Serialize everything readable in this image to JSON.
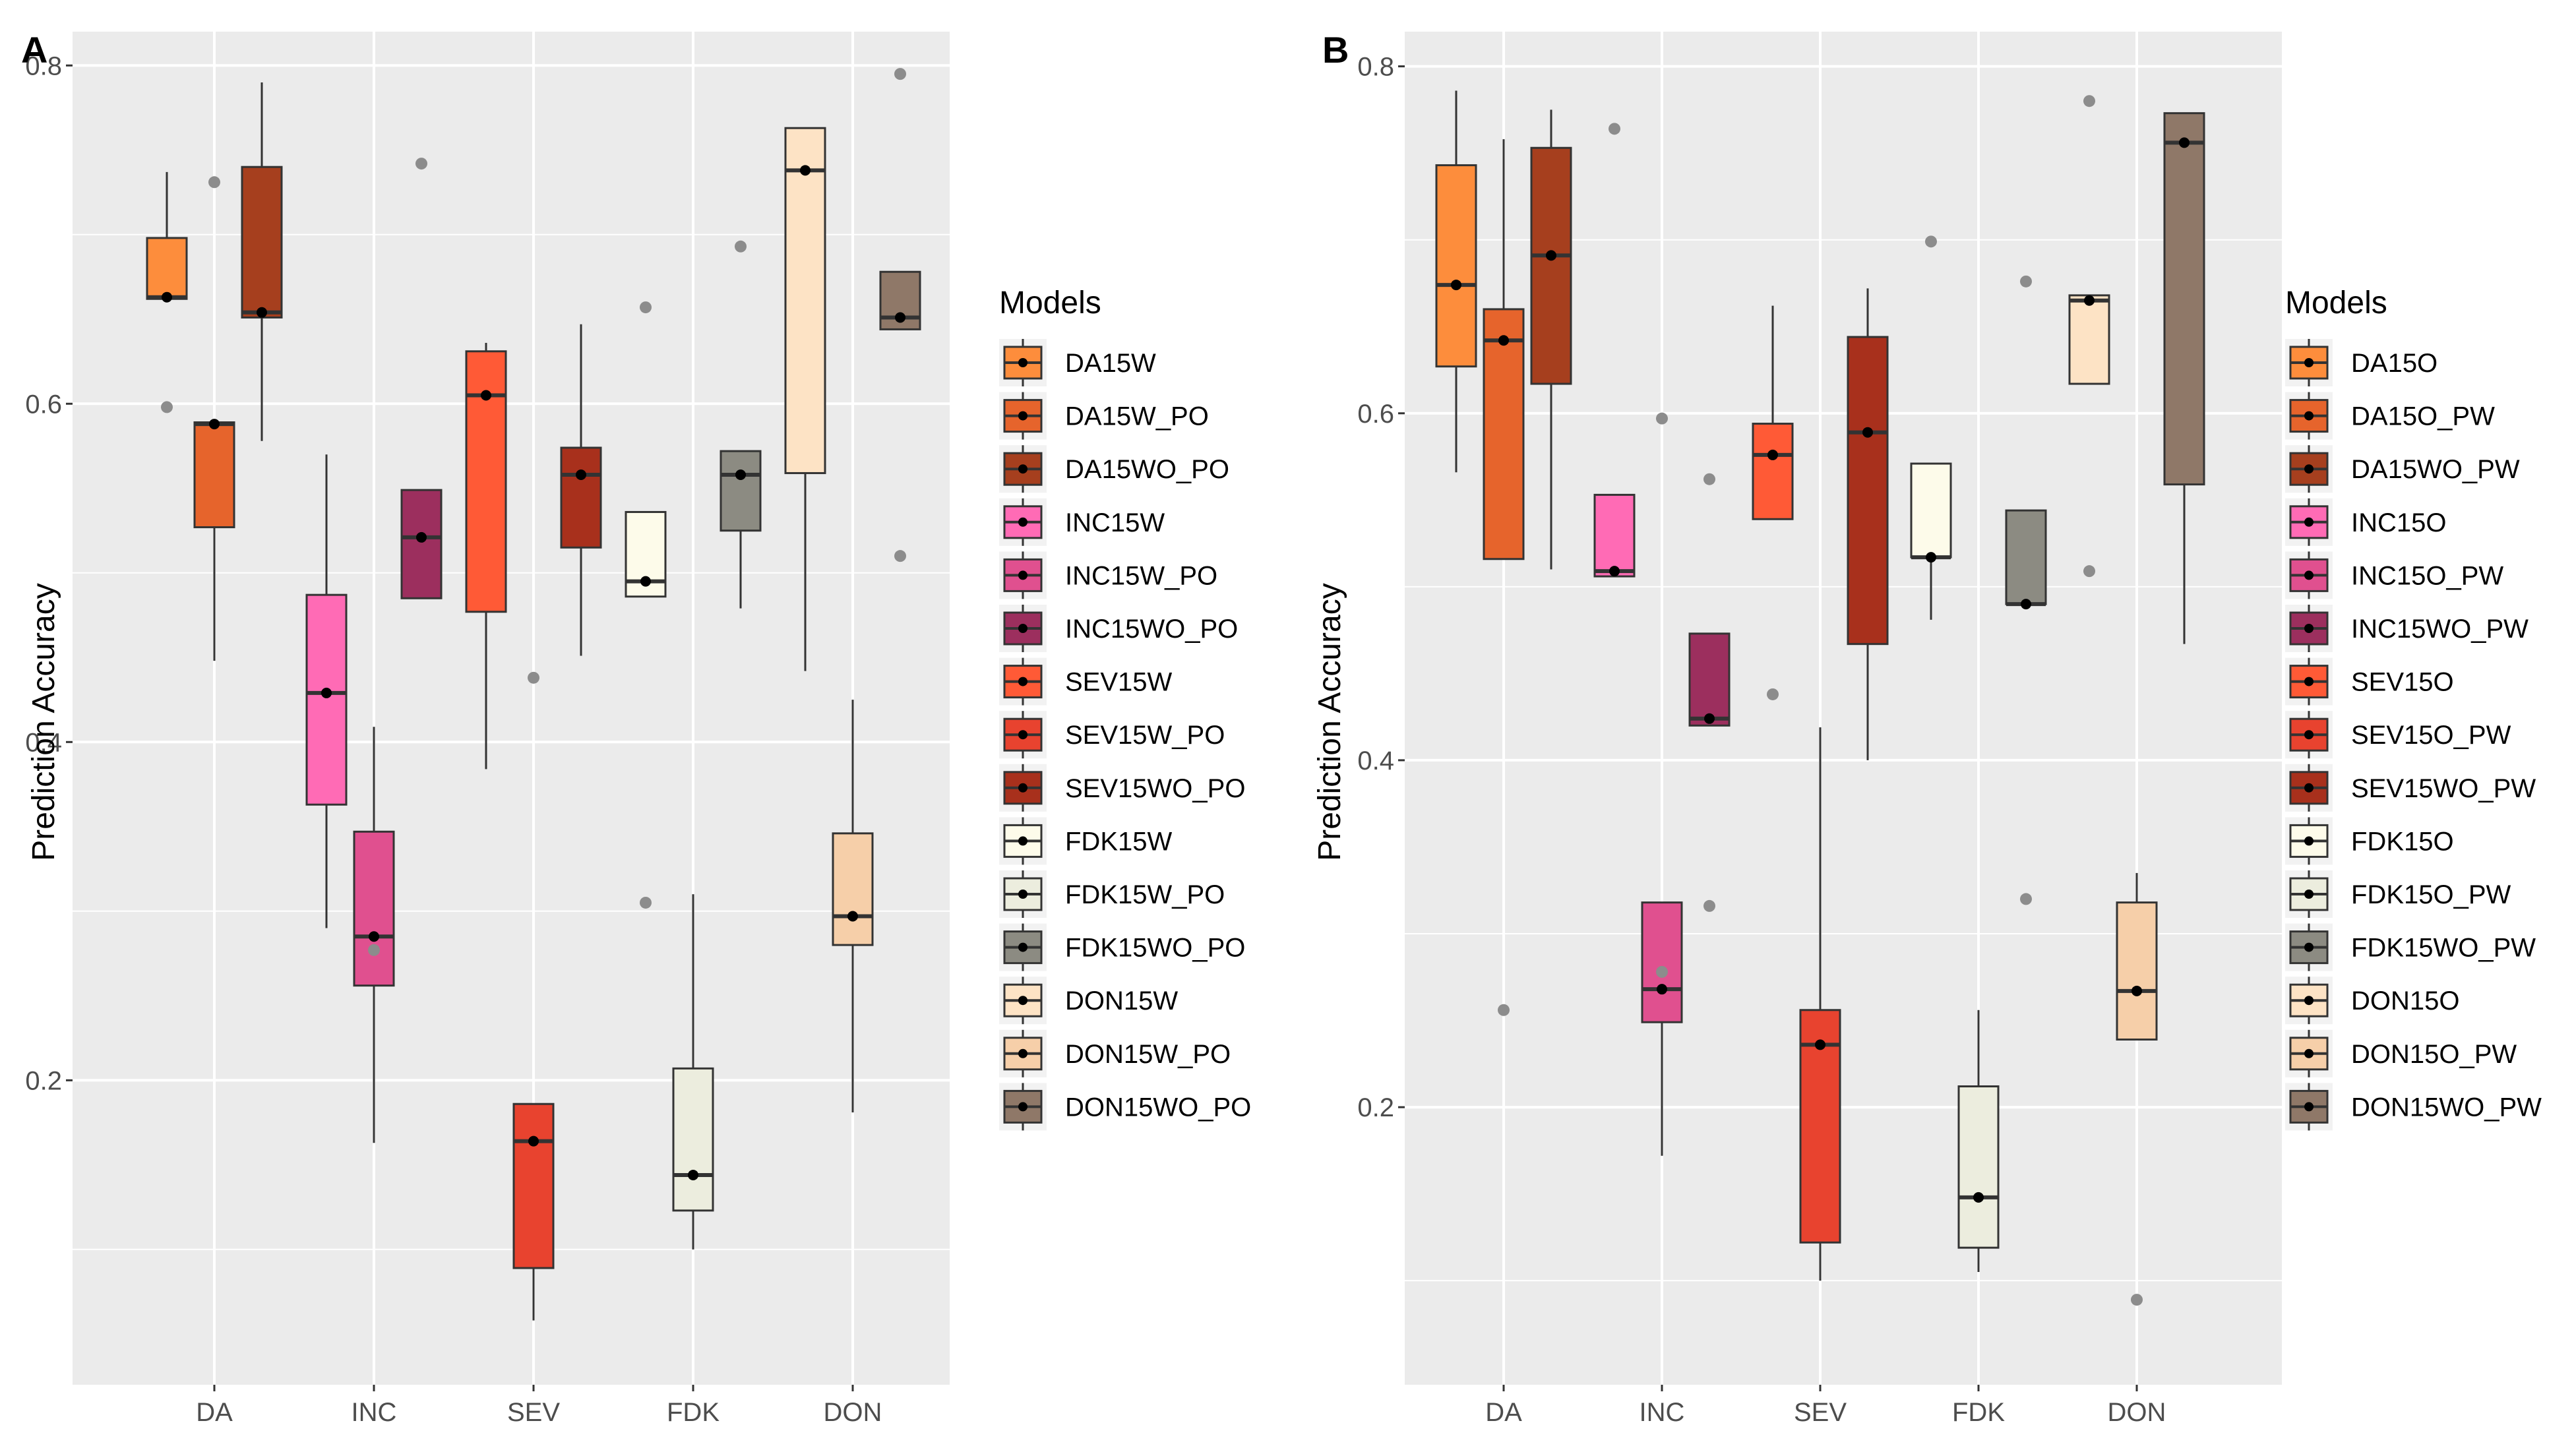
{
  "colors": {
    "panel_bg": "#ebebeb",
    "grid": "#ffffff",
    "text": "#4d4d4d",
    "outlier": "#8c8c8c"
  },
  "chart_data": [
    {
      "type": "boxplot",
      "panel_label": "A",
      "ylabel": "Prediction Accuracy",
      "xlabel": "",
      "categories": [
        "DA",
        "INC",
        "SEV",
        "FDK",
        "DON"
      ],
      "ylim": [
        0.02,
        0.82
      ],
      "yticks": [
        0.2,
        0.4,
        0.6,
        0.8
      ],
      "ytick_labels": [
        "0.2",
        "0.4",
        "0.6",
        "0.8"
      ],
      "legend_title": "Models",
      "legend_position": "right",
      "series": [
        {
          "name": "DA15W",
          "category": "DA",
          "color": "#fd8d3c",
          "q1": 0.662,
          "median": 0.663,
          "q3": 0.698,
          "whisker_low": 0.662,
          "whisker_high": 0.737,
          "outliers": [
            0.598
          ]
        },
        {
          "name": "DA15W_PO",
          "category": "DA",
          "color": "#e6642c",
          "q1": 0.527,
          "median": 0.588,
          "q3": 0.589,
          "whisker_low": 0.448,
          "whisker_high": 0.589,
          "outliers": [
            0.731
          ]
        },
        {
          "name": "DA15WO_PO",
          "category": "DA",
          "color": "#a63f1e",
          "q1": 0.651,
          "median": 0.654,
          "q3": 0.74,
          "whisker_low": 0.578,
          "whisker_high": 0.79,
          "outliers": []
        },
        {
          "name": "INC15W",
          "category": "INC",
          "color": "#ff6bb5",
          "q1": 0.363,
          "median": 0.429,
          "q3": 0.487,
          "whisker_low": 0.29,
          "whisker_high": 0.57,
          "outliers": []
        },
        {
          "name": "INC15W_PO",
          "category": "INC",
          "color": "#e0508f",
          "q1": 0.256,
          "median": 0.285,
          "q3": 0.347,
          "whisker_low": 0.163,
          "whisker_high": 0.409,
          "outliers": [
            0.277
          ]
        },
        {
          "name": "INC15WO_PO",
          "category": "INC",
          "color": "#9c2f5e",
          "q1": 0.485,
          "median": 0.521,
          "q3": 0.549,
          "whisker_low": 0.485,
          "whisker_high": 0.549,
          "outliers": [
            0.742
          ]
        },
        {
          "name": "SEV15W",
          "category": "SEV",
          "color": "#ff5a36",
          "q1": 0.477,
          "median": 0.605,
          "q3": 0.631,
          "whisker_low": 0.384,
          "whisker_high": 0.636,
          "outliers": []
        },
        {
          "name": "SEV15W_PO",
          "category": "SEV",
          "color": "#e8432f",
          "q1": 0.089,
          "median": 0.164,
          "q3": 0.186,
          "whisker_low": 0.058,
          "whisker_high": 0.186,
          "outliers": [
            0.438
          ]
        },
        {
          "name": "SEV15WO_PO",
          "category": "SEV",
          "color": "#a8301c",
          "q1": 0.515,
          "median": 0.558,
          "q3": 0.574,
          "whisker_low": 0.451,
          "whisker_high": 0.647,
          "outliers": []
        },
        {
          "name": "FDK15W",
          "category": "FDK",
          "color": "#fdfbea",
          "q1": 0.486,
          "median": 0.495,
          "q3": 0.536,
          "whisker_low": 0.486,
          "whisker_high": 0.536,
          "outliers": [
            0.657,
            0.305
          ]
        },
        {
          "name": "FDK15W_PO",
          "category": "FDK",
          "color": "#ecedde",
          "q1": 0.123,
          "median": 0.144,
          "q3": 0.207,
          "whisker_low": 0.1,
          "whisker_high": 0.31,
          "outliers": []
        },
        {
          "name": "FDK15WO_PO",
          "category": "FDK",
          "color": "#8c8b82",
          "q1": 0.525,
          "median": 0.558,
          "q3": 0.572,
          "whisker_low": 0.479,
          "whisker_high": 0.572,
          "outliers": [
            0.693
          ]
        },
        {
          "name": "DON15W",
          "category": "DON",
          "color": "#fde3c5",
          "q1": 0.559,
          "median": 0.738,
          "q3": 0.763,
          "whisker_low": 0.442,
          "whisker_high": 0.763,
          "outliers": []
        },
        {
          "name": "DON15W_PO",
          "category": "DON",
          "color": "#f6cfa9",
          "q1": 0.28,
          "median": 0.297,
          "q3": 0.346,
          "whisker_low": 0.181,
          "whisker_high": 0.425,
          "outliers": []
        },
        {
          "name": "DON15WO_PO",
          "category": "DON",
          "color": "#8f7868",
          "q1": 0.644,
          "median": 0.651,
          "q3": 0.678,
          "whisker_low": 0.644,
          "whisker_high": 0.678,
          "outliers": [
            0.795,
            0.51
          ]
        }
      ]
    },
    {
      "type": "boxplot",
      "panel_label": "B",
      "ylabel": "Prediction Accuracy",
      "xlabel": "",
      "categories": [
        "DA",
        "INC",
        "SEV",
        "FDK",
        "DON"
      ],
      "ylim": [
        0.04,
        0.82
      ],
      "yticks": [
        0.2,
        0.4,
        0.6,
        0.8
      ],
      "ytick_labels": [
        "0.2",
        "0.4",
        "0.6",
        "0.8"
      ],
      "legend_title": "Models",
      "legend_position": "right",
      "series": [
        {
          "name": "DA15O",
          "category": "DA",
          "color": "#fd8d3c",
          "q1": 0.627,
          "median": 0.674,
          "q3": 0.743,
          "whisker_low": 0.566,
          "whisker_high": 0.786,
          "outliers": []
        },
        {
          "name": "DA15O_PW",
          "category": "DA",
          "color": "#e6642c",
          "q1": 0.516,
          "median": 0.642,
          "q3": 0.66,
          "whisker_low": 0.516,
          "whisker_high": 0.758,
          "outliers": [
            0.256
          ]
        },
        {
          "name": "DA15WO_PW",
          "category": "DA",
          "color": "#a63f1e",
          "q1": 0.617,
          "median": 0.691,
          "q3": 0.753,
          "whisker_low": 0.51,
          "whisker_high": 0.775,
          "outliers": []
        },
        {
          "name": "INC15O",
          "category": "INC",
          "color": "#ff6bb5",
          "q1": 0.506,
          "median": 0.509,
          "q3": 0.553,
          "whisker_low": 0.506,
          "whisker_high": 0.553,
          "outliers": [
            0.764
          ]
        },
        {
          "name": "INC15O_PW",
          "category": "INC",
          "color": "#e0508f",
          "q1": 0.249,
          "median": 0.268,
          "q3": 0.318,
          "whisker_low": 0.172,
          "whisker_high": 0.318,
          "outliers": [
            0.278,
            0.597
          ]
        },
        {
          "name": "INC15WO_PW",
          "category": "INC",
          "color": "#9c2f5e",
          "q1": 0.42,
          "median": 0.424,
          "q3": 0.473,
          "whisker_low": 0.42,
          "whisker_high": 0.473,
          "outliers": [
            0.562,
            0.316
          ]
        },
        {
          "name": "SEV15O",
          "category": "SEV",
          "color": "#ff5a36",
          "q1": 0.539,
          "median": 0.576,
          "q3": 0.594,
          "whisker_low": 0.539,
          "whisker_high": 0.662,
          "outliers": [
            0.438
          ]
        },
        {
          "name": "SEV15O_PW",
          "category": "SEV",
          "color": "#e8432f",
          "q1": 0.122,
          "median": 0.236,
          "q3": 0.256,
          "whisker_low": 0.1,
          "whisker_high": 0.419,
          "outliers": []
        },
        {
          "name": "SEV15WO_PW",
          "category": "SEV",
          "color": "#a8301c",
          "q1": 0.467,
          "median": 0.589,
          "q3": 0.644,
          "whisker_low": 0.4,
          "whisker_high": 0.672,
          "outliers": []
        },
        {
          "name": "FDK15O",
          "category": "FDK",
          "color": "#fdfbea",
          "q1": 0.517,
          "median": 0.517,
          "q3": 0.571,
          "whisker_low": 0.481,
          "whisker_high": 0.571,
          "outliers": [
            0.699
          ]
        },
        {
          "name": "FDK15O_PW",
          "category": "FDK",
          "color": "#ecedde",
          "q1": 0.119,
          "median": 0.148,
          "q3": 0.212,
          "whisker_low": 0.105,
          "whisker_high": 0.256,
          "outliers": []
        },
        {
          "name": "FDK15WO_PW",
          "category": "FDK",
          "color": "#8c8b82",
          "q1": 0.49,
          "median": 0.49,
          "q3": 0.544,
          "whisker_low": 0.49,
          "whisker_high": 0.544,
          "outliers": [
            0.676,
            0.32
          ]
        },
        {
          "name": "DON15O",
          "category": "DON",
          "color": "#fde3c5",
          "q1": 0.617,
          "median": 0.665,
          "q3": 0.668,
          "whisker_low": 0.617,
          "whisker_high": 0.668,
          "outliers": [
            0.78,
            0.509
          ]
        },
        {
          "name": "DON15O_PW",
          "category": "DON",
          "color": "#f6cfa9",
          "q1": 0.239,
          "median": 0.267,
          "q3": 0.318,
          "whisker_low": 0.239,
          "whisker_high": 0.335,
          "outliers": [
            0.089
          ]
        },
        {
          "name": "DON15WO_PW",
          "category": "DON",
          "color": "#8f7868",
          "q1": 0.559,
          "median": 0.756,
          "q3": 0.773,
          "whisker_low": 0.467,
          "whisker_high": 0.773,
          "outliers": []
        }
      ]
    }
  ]
}
